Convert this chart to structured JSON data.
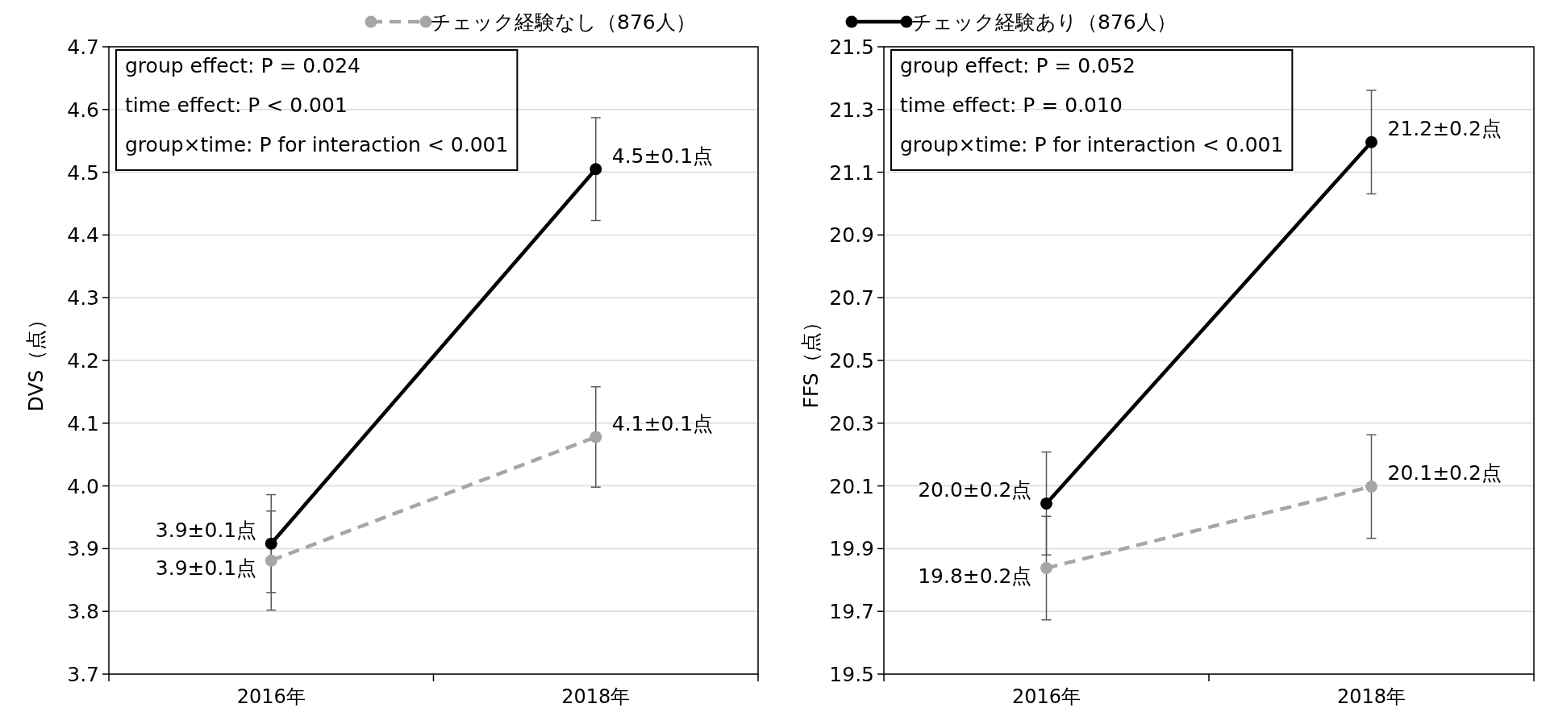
{
  "chart_data": [
    {
      "type": "line",
      "ylabel": "DVS（点）",
      "categories": [
        "2016年",
        "2018年"
      ],
      "ylim": [
        3.7,
        4.7
      ],
      "yticks": [
        3.7,
        3.8,
        3.9,
        {
          "value": 4,
          "label": "4.0"
        },
        4.1,
        4.2,
        4.3,
        4.4,
        4.5,
        4.6,
        4.7
      ],
      "grid": "y",
      "legend": "top right",
      "marker": "circle",
      "annotations": [
        "group effect: P = 0.024",
        "time effect: P < 0.001",
        "group×time: P for interaction < 0.001"
      ],
      "series": [
        {
          "name": "チェック経験なし（876人）",
          "color": "#a6a6a6",
          "line_style": "dashed",
          "values": [
            3.881,
            4.078
          ],
          "errors": [
            0.079,
            0.08
          ],
          "value_labels": [
            "3.9±0.1点",
            "4.1±0.1点"
          ]
        },
        {
          "color": "#000000",
          "line_style": "solid",
          "values": [
            3.908,
            4.505
          ],
          "errors": [
            0.078,
            0.082
          ],
          "value_labels": [
            "3.9±0.1点",
            "4.5±0.1点"
          ]
        }
      ]
    },
    {
      "type": "line",
      "ylabel": "FFS（点）",
      "categories": [
        "2016年",
        "2018年"
      ],
      "ylim": [
        19.5,
        21.5
      ],
      "yticks": [
        19.5,
        19.7,
        19.9,
        20.1,
        20.3,
        20.5,
        20.7,
        20.9,
        21.1,
        21.3,
        21.5
      ],
      "grid": "y",
      "legend": "top left",
      "marker": "circle",
      "annotations": [
        "group effect: P = 0.052",
        "time effect: P = 0.010",
        "group×time: P for interaction < 0.001"
      ],
      "series": [
        {
          "color": "#a6a6a6",
          "line_style": "dashed",
          "values": [
            19.838,
            20.098
          ],
          "errors": [
            0.165,
            0.165
          ],
          "value_labels": [
            "19.8±0.2点",
            "20.1±0.2点"
          ]
        },
        {
          "name": "チェック経験あり（876人）",
          "color": "#000000",
          "line_style": "solid",
          "values": [
            20.044,
            21.196
          ],
          "errors": [
            0.164,
            0.165
          ],
          "value_labels": [
            "20.0±0.2点",
            "21.2±0.2点"
          ]
        }
      ]
    }
  ]
}
